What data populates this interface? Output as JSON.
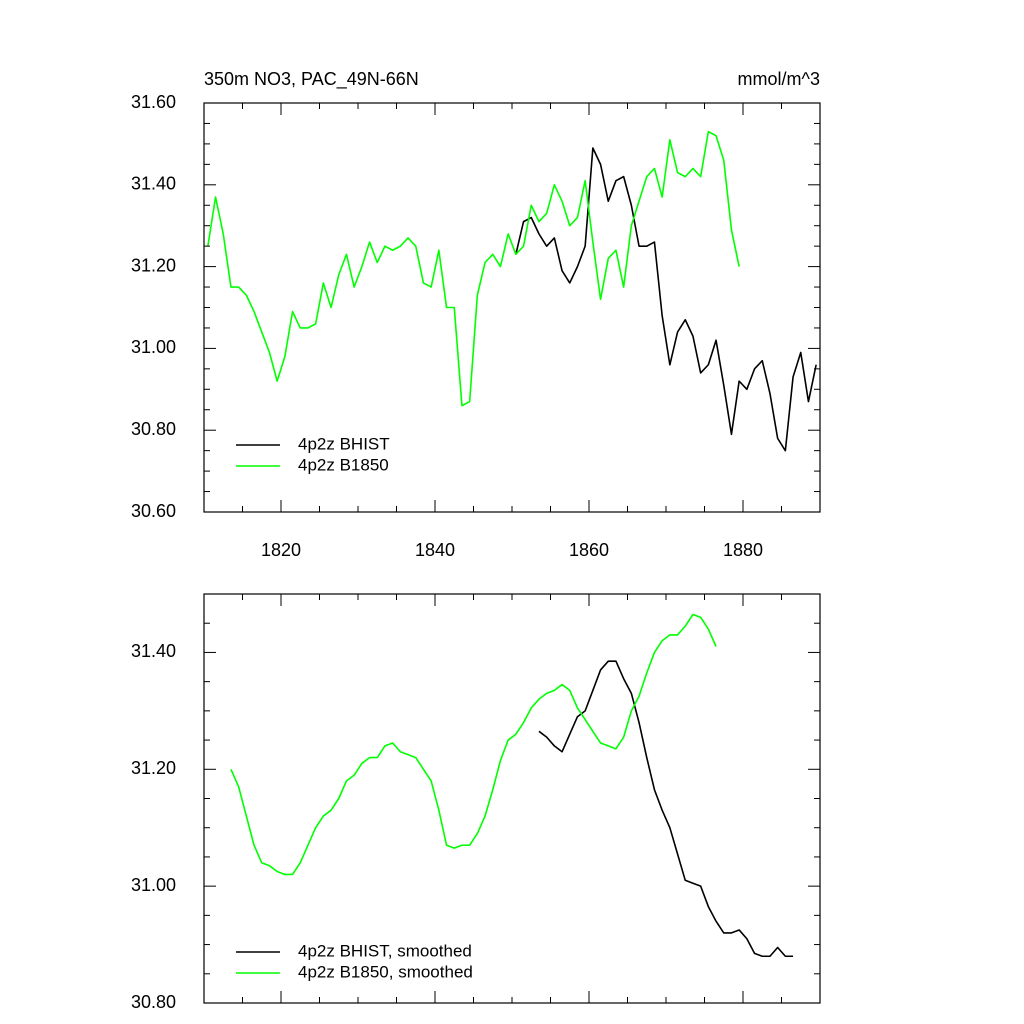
{
  "chart_data": [
    {
      "type": "line",
      "title": "350m NO3, PAC_49N-66N",
      "units": "mmol/m^3",
      "xlim": [
        1810,
        1890
      ],
      "xticks": [
        1820,
        1840,
        1860,
        1880
      ],
      "ylim": [
        30.6,
        31.6
      ],
      "yticks": [
        {
          "value": 30.6,
          "label": "30.60"
        },
        {
          "value": 30.8,
          "label": "30.80"
        },
        {
          "value": 31.0,
          "label": "31.00"
        },
        {
          "value": 31.2,
          "label": "31.20"
        },
        {
          "value": 31.4,
          "label": "31.40"
        },
        {
          "value": 31.6,
          "label": "31.60"
        }
      ],
      "legend": "bottom left",
      "series": [
        {
          "name": "4p2z BHIST",
          "color": "#000000",
          "x": [
            1850.5,
            1851.5,
            1852.5,
            1853.5,
            1854.5,
            1855.5,
            1856.5,
            1857.5,
            1858.5,
            1859.5,
            1860.5,
            1861.5,
            1862.5,
            1863.5,
            1864.5,
            1865.5,
            1866.5,
            1867.5,
            1868.5,
            1869.5,
            1870.5,
            1871.5,
            1872.5,
            1873.5,
            1874.5,
            1875.5,
            1876.5,
            1877.5,
            1878.5,
            1879.5,
            1880.5,
            1881.5,
            1882.5,
            1883.5,
            1884.5,
            1885.5,
            1886.5,
            1887.5,
            1888.5,
            1889.5
          ],
          "values": [
            31.23,
            31.31,
            31.32,
            31.28,
            31.25,
            31.27,
            31.19,
            31.16,
            31.2,
            31.25,
            31.49,
            31.45,
            31.36,
            31.41,
            31.42,
            31.35,
            31.25,
            31.25,
            31.26,
            31.08,
            30.96,
            31.04,
            31.07,
            31.03,
            30.94,
            30.96,
            31.02,
            30.91,
            30.79,
            30.92,
            30.9,
            30.95,
            30.97,
            30.89,
            30.78,
            30.75,
            30.93,
            30.99,
            30.87,
            30.96
          ]
        },
        {
          "name": "4p2z B1850",
          "color": "#00ff00",
          "x": [
            1810.5,
            1811.5,
            1812.5,
            1813.5,
            1814.5,
            1815.5,
            1816.5,
            1817.5,
            1818.5,
            1819.5,
            1820.5,
            1821.5,
            1822.5,
            1823.5,
            1824.5,
            1825.5,
            1826.5,
            1827.5,
            1828.5,
            1829.5,
            1830.5,
            1831.5,
            1832.5,
            1833.5,
            1834.5,
            1835.5,
            1836.5,
            1837.5,
            1838.5,
            1839.5,
            1840.5,
            1841.5,
            1842.5,
            1843.5,
            1844.5,
            1845.5,
            1846.5,
            1847.5,
            1848.5,
            1849.5,
            1850.5,
            1851.5,
            1852.5,
            1853.5,
            1854.5,
            1855.5,
            1856.5,
            1857.5,
            1858.5,
            1859.5,
            1860.5,
            1861.5,
            1862.5,
            1863.5,
            1864.5,
            1865.5,
            1866.5,
            1867.5,
            1868.5,
            1869.5,
            1870.5,
            1871.5,
            1872.5,
            1873.5,
            1874.5,
            1875.5,
            1876.5,
            1877.5,
            1878.5,
            1879.5
          ],
          "values": [
            31.25,
            31.37,
            31.28,
            31.15,
            31.15,
            31.13,
            31.09,
            31.04,
            30.99,
            30.92,
            30.98,
            31.09,
            31.05,
            31.05,
            31.06,
            31.16,
            31.1,
            31.18,
            31.23,
            31.15,
            31.2,
            31.26,
            31.21,
            31.25,
            31.24,
            31.25,
            31.27,
            31.25,
            31.16,
            31.15,
            31.24,
            31.1,
            31.1,
            30.86,
            30.87,
            31.13,
            31.21,
            31.23,
            31.2,
            31.28,
            31.23,
            31.25,
            31.35,
            31.31,
            31.33,
            31.4,
            31.36,
            31.3,
            31.32,
            31.41,
            31.26,
            31.12,
            31.22,
            31.24,
            31.15,
            31.3,
            31.36,
            31.42,
            31.44,
            31.37,
            31.51,
            31.43,
            31.42,
            31.44,
            31.42,
            31.53,
            31.52,
            31.46,
            31.29,
            31.2
          ]
        }
      ]
    },
    {
      "type": "line",
      "xlim": [
        1810,
        1890
      ],
      "xticks": [
        1820,
        1840,
        1860,
        1880
      ],
      "xtick_labels": false,
      "ylim": [
        30.8,
        31.5
      ],
      "yticks": [
        {
          "value": 30.8,
          "label": "30.80"
        },
        {
          "value": 31.0,
          "label": "31.00"
        },
        {
          "value": 31.2,
          "label": "31.20"
        },
        {
          "value": 31.4,
          "label": "31.40"
        }
      ],
      "legend": "bottom left",
      "series": [
        {
          "name": "4p2z BHIST, smoothed",
          "color": "#000000",
          "x": [
            1853.5,
            1854.5,
            1855.5,
            1856.5,
            1857.5,
            1858.5,
            1859.5,
            1860.5,
            1861.5,
            1862.5,
            1863.5,
            1864.5,
            1865.5,
            1866.5,
            1867.5,
            1868.5,
            1869.5,
            1870.5,
            1871.5,
            1872.5,
            1873.5,
            1874.5,
            1875.5,
            1876.5,
            1877.5,
            1878.5,
            1879.5,
            1880.5,
            1881.5,
            1882.5,
            1883.5,
            1884.5,
            1885.5,
            1886.5
          ],
          "values": [
            31.265,
            31.255,
            31.24,
            31.23,
            31.26,
            31.29,
            31.3,
            31.335,
            31.37,
            31.385,
            31.385,
            31.355,
            31.33,
            31.28,
            31.22,
            31.165,
            31.13,
            31.1,
            31.055,
            31.01,
            31.005,
            31.0,
            30.965,
            30.94,
            30.92,
            30.92,
            30.925,
            30.91,
            30.885,
            30.88,
            30.88,
            30.895,
            30.88,
            30.88
          ]
        },
        {
          "name": "4p2z B1850, smoothed",
          "color": "#00ff00",
          "x": [
            1813.5,
            1814.5,
            1815.5,
            1816.5,
            1817.5,
            1818.5,
            1819.5,
            1820.5,
            1821.5,
            1822.5,
            1823.5,
            1824.5,
            1825.5,
            1826.5,
            1827.5,
            1828.5,
            1829.5,
            1830.5,
            1831.5,
            1832.5,
            1833.5,
            1834.5,
            1835.5,
            1836.5,
            1837.5,
            1838.5,
            1839.5,
            1840.5,
            1841.5,
            1842.5,
            1843.5,
            1844.5,
            1845.5,
            1846.5,
            1847.5,
            1848.5,
            1849.5,
            1850.5,
            1851.5,
            1852.5,
            1853.5,
            1854.5,
            1855.5,
            1856.5,
            1857.5,
            1858.5,
            1859.5,
            1860.5,
            1861.5,
            1862.5,
            1863.5,
            1864.5,
            1865.5,
            1866.5,
            1867.5,
            1868.5,
            1869.5,
            1870.5,
            1871.5,
            1872.5,
            1873.5,
            1874.5,
            1875.5,
            1876.5
          ],
          "values": [
            31.2,
            31.17,
            31.12,
            31.07,
            31.04,
            31.035,
            31.025,
            31.02,
            31.02,
            31.04,
            31.07,
            31.1,
            31.12,
            31.13,
            31.15,
            31.18,
            31.19,
            31.21,
            31.22,
            31.22,
            31.24,
            31.245,
            31.23,
            31.225,
            31.22,
            31.2,
            31.18,
            31.13,
            31.07,
            31.065,
            31.07,
            31.07,
            31.09,
            31.12,
            31.165,
            31.215,
            31.25,
            31.26,
            31.28,
            31.305,
            31.32,
            31.33,
            31.335,
            31.345,
            31.335,
            31.305,
            31.285,
            31.265,
            31.245,
            31.24,
            31.235,
            31.255,
            31.3,
            31.325,
            31.365,
            31.4,
            31.42,
            31.43,
            31.43,
            31.445,
            31.465,
            31.46,
            31.44,
            31.41
          ]
        }
      ]
    }
  ]
}
